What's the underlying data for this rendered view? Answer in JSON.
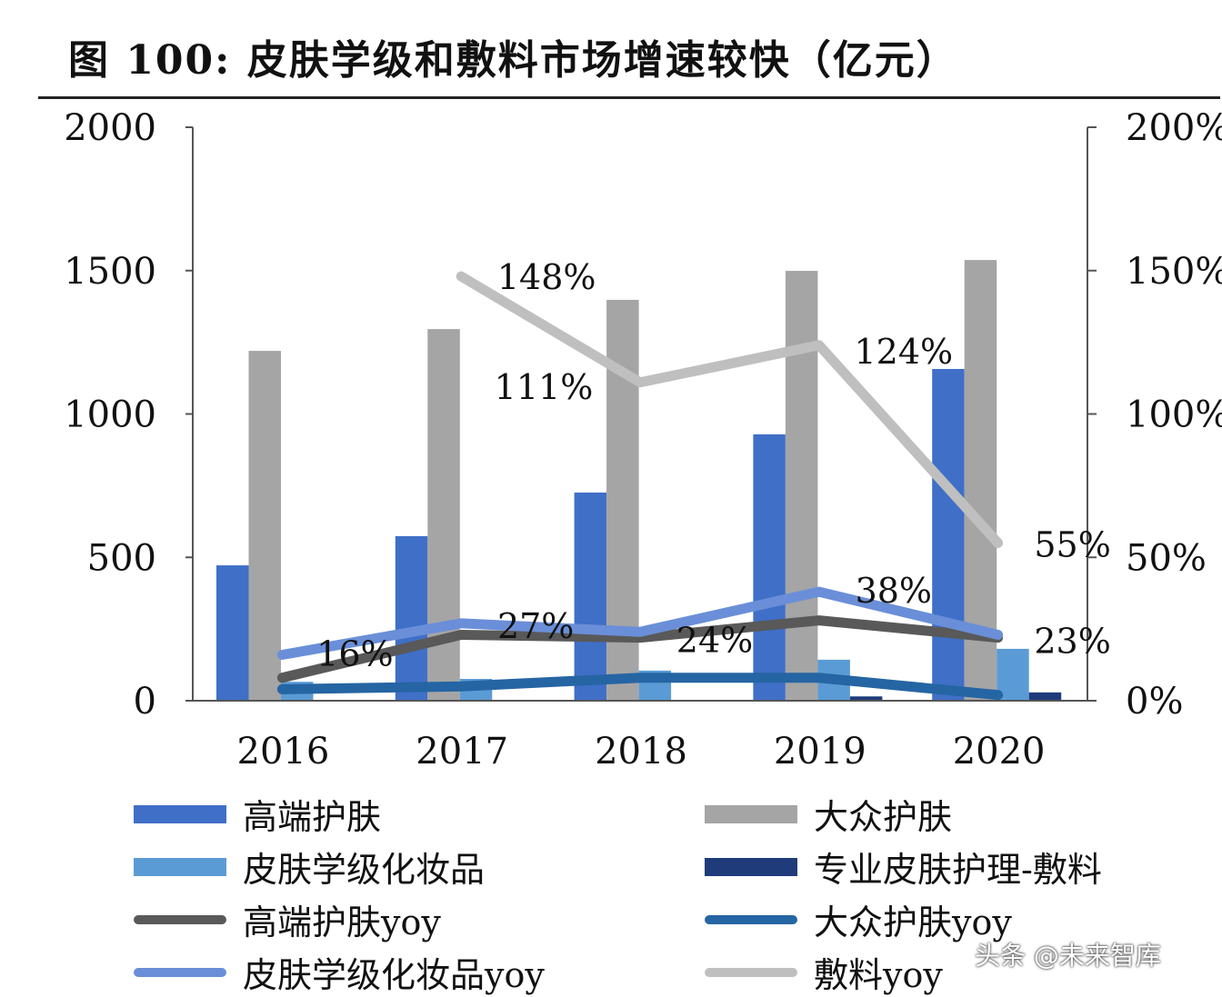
{
  "title": "图 100:  皮肤学级和敷料市场增速较快（亿元）",
  "watermark": "头条 @未来智库",
  "chart_data": {
    "type": "bar",
    "categories": [
      "2016",
      "2017",
      "2018",
      "2019",
      "2020"
    ],
    "ylim": [
      0,
      2000
    ],
    "y_ticks": [
      "0",
      "500",
      "1000",
      "1500",
      "2000"
    ],
    "y2lim": [
      0,
      200
    ],
    "y2_ticks": [
      "0%",
      "50%",
      "100%",
      "150%",
      "200%"
    ],
    "grid": false,
    "legend_position": "bottom",
    "bar_series": [
      {
        "name": "高端护肤",
        "color": "#3F6FC7",
        "values": [
          472,
          574,
          726,
          929,
          1157
        ]
      },
      {
        "name": "大众护肤",
        "color": "#A5A5A5",
        "values": [
          1220,
          1296,
          1398,
          1499,
          1537
        ]
      },
      {
        "name": "皮肤学级化妆品",
        "color": "#5B9BD5",
        "values": [
          66,
          76,
          105,
          143,
          181
        ]
      },
      {
        "name": "专业皮肤护理-敷料",
        "color": "#1F3B7A",
        "values": [
          0,
          0,
          0,
          15,
          29
        ]
      }
    ],
    "line_series": [
      {
        "name": "高端护肤yoy",
        "color": "#595959",
        "values": [
          8,
          23,
          22,
          28,
          22
        ]
      },
      {
        "name": "大众护肤yoy",
        "color": "#2565A3",
        "values": [
          4,
          5,
          8,
          8,
          2
        ]
      },
      {
        "name": "皮肤学级化妆品yoy",
        "color": "#6A8FD8",
        "values": [
          16,
          27,
          24,
          38,
          23
        ]
      },
      {
        "name": "敷料yoy",
        "color": "#BFBFBF",
        "values": [
          null,
          148,
          111,
          124,
          55
        ]
      }
    ],
    "data_labels": [
      {
        "series": "皮肤学级化妆品yoy",
        "labels": [
          "16%",
          "27%",
          "24%",
          "38%",
          "23%"
        ]
      },
      {
        "series": "敷料yoy",
        "labels": [
          "",
          "148%",
          "111%",
          "124%",
          "55%"
        ]
      }
    ]
  }
}
